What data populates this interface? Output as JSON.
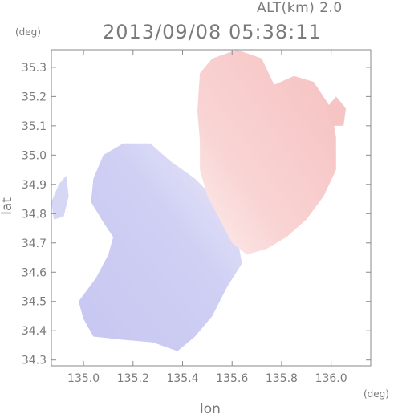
{
  "header": {
    "altitude_label": "ALT(km) 2.0",
    "timestamp": "2013/09/08 05:38:11"
  },
  "chart_data": {
    "type": "heatmap",
    "xlabel": "lon",
    "ylabel": "lat",
    "x_unit": "(deg)",
    "y_unit": "(deg)",
    "xlim": [
      134.87,
      136.16
    ],
    "ylim": [
      34.28,
      35.36
    ],
    "x_ticks": [
      "135.0",
      "135.2",
      "135.4",
      "135.6",
      "135.8",
      "136.0"
    ],
    "y_ticks": [
      "34.3",
      "34.4",
      "34.5",
      "34.6",
      "34.7",
      "34.8",
      "34.9",
      "35.0",
      "35.1",
      "35.2",
      "35.3"
    ],
    "grid": false,
    "colors": {
      "receding": "#f7c0c0",
      "receding_light": "#fbe2e2",
      "approaching": "#c8c8f2",
      "approaching_light": "#e4e4f8",
      "axis": "#8a8a8a"
    },
    "regions": [
      {
        "name": "approaching",
        "polygon": [
          [
            135.04,
            34.38
          ],
          [
            135.0,
            34.44
          ],
          [
            134.98,
            34.5
          ],
          [
            135.05,
            34.58
          ],
          [
            135.1,
            34.66
          ],
          [
            135.12,
            34.72
          ],
          [
            135.08,
            34.77
          ],
          [
            135.03,
            34.84
          ],
          [
            135.04,
            34.92
          ],
          [
            135.08,
            35.0
          ],
          [
            135.16,
            35.04
          ],
          [
            135.27,
            35.04
          ],
          [
            135.35,
            34.98
          ],
          [
            135.45,
            34.92
          ],
          [
            135.52,
            34.86
          ],
          [
            135.58,
            34.8
          ],
          [
            135.62,
            34.72
          ],
          [
            135.64,
            34.63
          ],
          [
            135.58,
            34.55
          ],
          [
            135.52,
            34.45
          ],
          [
            135.45,
            34.38
          ],
          [
            135.38,
            34.33
          ],
          [
            135.28,
            34.36
          ],
          [
            135.15,
            34.37
          ]
        ]
      },
      {
        "name": "approaching_west_patch",
        "polygon": [
          [
            134.88,
            34.78
          ],
          [
            134.87,
            34.84
          ],
          [
            134.9,
            34.9
          ],
          [
            134.93,
            34.93
          ],
          [
            134.94,
            34.86
          ],
          [
            134.92,
            34.79
          ]
        ]
      },
      {
        "name": "receding",
        "polygon": [
          [
            135.47,
            35.05
          ],
          [
            135.46,
            35.15
          ],
          [
            135.47,
            35.28
          ],
          [
            135.52,
            35.33
          ],
          [
            135.62,
            35.36
          ],
          [
            135.72,
            35.33
          ],
          [
            135.77,
            35.24
          ],
          [
            135.85,
            35.27
          ],
          [
            135.93,
            35.25
          ],
          [
            136.0,
            35.16
          ],
          [
            136.02,
            35.06
          ],
          [
            136.02,
            34.95
          ],
          [
            135.97,
            34.86
          ],
          [
            135.9,
            34.78
          ],
          [
            135.82,
            34.72
          ],
          [
            135.74,
            34.68
          ],
          [
            135.66,
            34.66
          ],
          [
            135.6,
            34.7
          ],
          [
            135.55,
            34.78
          ],
          [
            135.5,
            34.86
          ],
          [
            135.47,
            34.95
          ]
        ]
      },
      {
        "name": "receding_east_patch",
        "polygon": [
          [
            136.0,
            35.1
          ],
          [
            135.98,
            35.16
          ],
          [
            136.02,
            35.2
          ],
          [
            136.06,
            35.16
          ],
          [
            136.05,
            35.1
          ]
        ]
      }
    ]
  }
}
